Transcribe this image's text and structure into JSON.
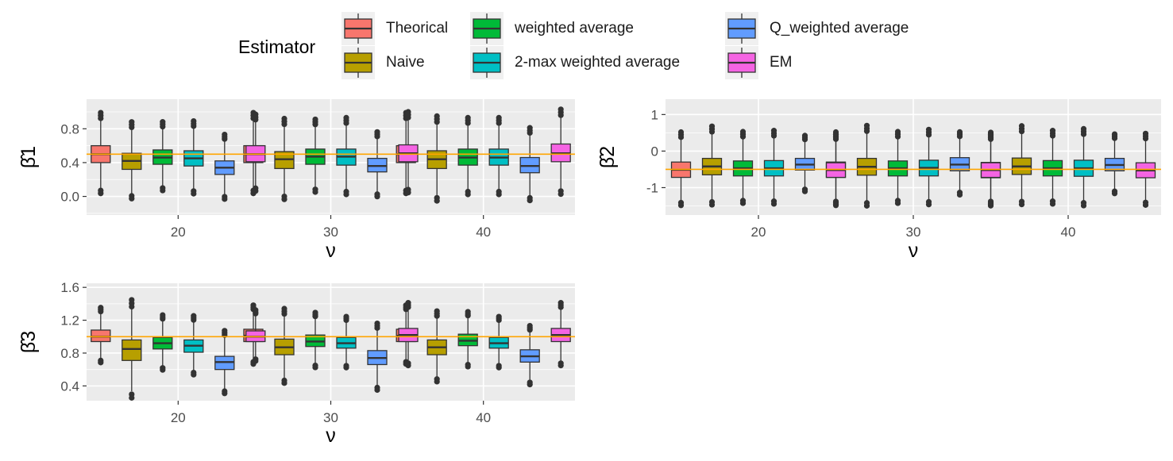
{
  "legend": {
    "title": "Estimator",
    "items": [
      {
        "label": "Theorical",
        "color": "#F8766D"
      },
      {
        "label": "Naive",
        "color": "#B79F00"
      },
      {
        "label": "weighted average",
        "color": "#00BA38"
      },
      {
        "label": "2-max weighted average",
        "color": "#00BFC4"
      },
      {
        "label": "Q_weighted average",
        "color": "#619CFF"
      },
      {
        "label": "EM",
        "color": "#F564E3"
      }
    ]
  },
  "chart_data": [
    {
      "type": "box",
      "ylabel": "β̂1",
      "xlabel": "ν",
      "categories": [
        "20",
        "30",
        "40"
      ],
      "reference_line": 0.5,
      "reference_color": "#FFA500",
      "yticks": [
        "0.0",
        "0.4",
        "0.8"
      ],
      "ylim": [
        -0.22,
        1.15
      ],
      "series": [
        {
          "name": "Theorical",
          "boxes": [
            [
              0.4,
              0.5,
              0.6
            ],
            [
              0.4,
              0.5,
              0.6
            ],
            [
              0.4,
              0.5,
              0.6
            ]
          ]
        },
        {
          "name": "Naive",
          "boxes": [
            [
              0.32,
              0.42,
              0.51
            ],
            [
              0.33,
              0.44,
              0.53
            ],
            [
              0.33,
              0.44,
              0.54
            ]
          ]
        },
        {
          "name": "weighted average",
          "boxes": [
            [
              0.38,
              0.46,
              0.55
            ],
            [
              0.38,
              0.47,
              0.56
            ],
            [
              0.37,
              0.46,
              0.56
            ]
          ]
        },
        {
          "name": "2-max weighted average",
          "boxes": [
            [
              0.36,
              0.45,
              0.54
            ],
            [
              0.37,
              0.47,
              0.56
            ],
            [
              0.37,
              0.46,
              0.56
            ]
          ]
        },
        {
          "name": "Q_weighted average",
          "boxes": [
            [
              0.26,
              0.34,
              0.42
            ],
            [
              0.29,
              0.36,
              0.45
            ],
            [
              0.28,
              0.36,
              0.46
            ]
          ]
        },
        {
          "name": "EM",
          "boxes": [
            [
              0.41,
              0.5,
              0.6
            ],
            [
              0.41,
              0.51,
              0.61
            ],
            [
              0.41,
              0.51,
              0.62
            ]
          ]
        }
      ]
    },
    {
      "type": "box",
      "ylabel": "β̂2",
      "xlabel": "ν",
      "categories": [
        "20",
        "30",
        "40"
      ],
      "reference_line": -0.5,
      "reference_color": "#FFA500",
      "yticks": [
        "-1",
        "0",
        "1"
      ],
      "ylim": [
        -1.75,
        1.42
      ],
      "series": [
        {
          "name": "Theorical",
          "boxes": [
            [
              -0.72,
              -0.51,
              -0.3
            ],
            [
              -0.72,
              -0.51,
              -0.3
            ],
            [
              -0.73,
              -0.52,
              -0.31
            ]
          ]
        },
        {
          "name": "Naive",
          "boxes": [
            [
              -0.65,
              -0.42,
              -0.2
            ],
            [
              -0.66,
              -0.43,
              -0.2
            ],
            [
              -0.64,
              -0.42,
              -0.19
            ]
          ]
        },
        {
          "name": "weighted average",
          "boxes": [
            [
              -0.68,
              -0.47,
              -0.27
            ],
            [
              -0.68,
              -0.47,
              -0.27
            ],
            [
              -0.68,
              -0.47,
              -0.26
            ]
          ]
        },
        {
          "name": "2-max weighted average",
          "boxes": [
            [
              -0.68,
              -0.47,
              -0.26
            ],
            [
              -0.68,
              -0.46,
              -0.25
            ],
            [
              -0.69,
              -0.47,
              -0.25
            ]
          ]
        },
        {
          "name": "Q_weighted average",
          "boxes": [
            [
              -0.52,
              -0.37,
              -0.2
            ],
            [
              -0.54,
              -0.37,
              -0.18
            ],
            [
              -0.54,
              -0.38,
              -0.2
            ]
          ]
        },
        {
          "name": "EM",
          "boxes": [
            [
              -0.72,
              -0.52,
              -0.32
            ],
            [
              -0.72,
              -0.52,
              -0.32
            ],
            [
              -0.73,
              -0.53,
              -0.32
            ]
          ]
        }
      ]
    },
    {
      "type": "box",
      "ylabel": "β̂3",
      "xlabel": "ν",
      "categories": [
        "20",
        "30",
        "40"
      ],
      "reference_line": 1.0,
      "reference_color": "#FFA500",
      "yticks": [
        "0.4",
        "0.8",
        "1.2",
        "1.6"
      ],
      "ylim": [
        0.22,
        1.65
      ],
      "series": [
        {
          "name": "Theorical",
          "boxes": [
            [
              0.94,
              1.0,
              1.08
            ],
            [
              0.94,
              1.01,
              1.09
            ],
            [
              0.94,
              1.01,
              1.09
            ]
          ]
        },
        {
          "name": "Naive",
          "boxes": [
            [
              0.71,
              0.85,
              0.96
            ],
            [
              0.78,
              0.87,
              0.97
            ],
            [
              0.78,
              0.87,
              0.96
            ]
          ]
        },
        {
          "name": "weighted average",
          "boxes": [
            [
              0.85,
              0.92,
              0.99
            ],
            [
              0.88,
              0.94,
              1.02
            ],
            [
              0.89,
              0.95,
              1.03
            ]
          ]
        },
        {
          "name": "2-max weighted average",
          "boxes": [
            [
              0.81,
              0.89,
              0.96
            ],
            [
              0.86,
              0.92,
              0.99
            ],
            [
              0.86,
              0.92,
              0.99
            ]
          ]
        },
        {
          "name": "Q_weighted average",
          "boxes": [
            [
              0.6,
              0.69,
              0.76
            ],
            [
              0.66,
              0.74,
              0.83
            ],
            [
              0.69,
              0.76,
              0.84
            ]
          ]
        },
        {
          "name": "EM",
          "boxes": [
            [
              0.94,
              1.0,
              1.07
            ],
            [
              0.94,
              1.02,
              1.1
            ],
            [
              0.94,
              1.02,
              1.1
            ]
          ]
        }
      ]
    }
  ]
}
